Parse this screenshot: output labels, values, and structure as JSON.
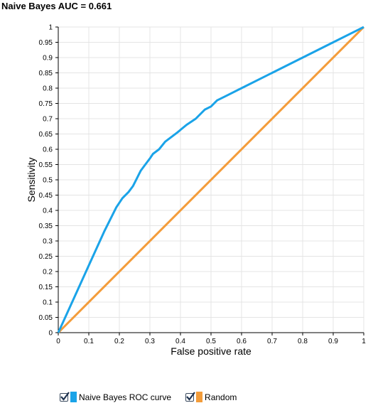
{
  "title": "Naive Bayes AUC = 0.661",
  "chart_data": {
    "type": "line",
    "title": "Naive Bayes AUC = 0.661",
    "xlabel": "False positive rate",
    "ylabel": "Sensitivity",
    "xlim": [
      0,
      1
    ],
    "ylim": [
      0,
      1
    ],
    "x_ticks": [
      "0",
      "0.1",
      "0.2",
      "0.3",
      "0.4",
      "0.5",
      "0.6",
      "0.7",
      "0.8",
      "0.9",
      "1"
    ],
    "y_ticks": [
      "0",
      "0.05",
      "0.1",
      "0.15",
      "0.2",
      "0.25",
      "0.3",
      "0.35",
      "0.4",
      "0.45",
      "0.5",
      "0.55",
      "0.6",
      "0.65",
      "0.7",
      "0.75",
      "0.8",
      "0.85",
      "0.9",
      "0.95",
      "1"
    ],
    "grid": true,
    "legend_position": "bottom-left",
    "series": [
      {
        "name": "Naive Bayes ROC curve",
        "color": "#1aa3e8",
        "x": [
          0,
          0.05,
          0.1,
          0.15,
          0.19,
          0.21,
          0.23,
          0.245,
          0.26,
          0.27,
          0.285,
          0.3,
          0.31,
          0.33,
          0.35,
          0.37,
          0.39,
          0.42,
          0.45,
          0.48,
          0.5,
          0.52,
          0.55,
          0.6,
          0.7,
          0.8,
          0.9,
          1.0
        ],
        "y": [
          0,
          0.11,
          0.22,
          0.33,
          0.41,
          0.44,
          0.46,
          0.48,
          0.51,
          0.53,
          0.55,
          0.57,
          0.585,
          0.6,
          0.625,
          0.64,
          0.655,
          0.68,
          0.7,
          0.73,
          0.74,
          0.76,
          0.775,
          0.8,
          0.85,
          0.9,
          0.95,
          1.0
        ]
      },
      {
        "name": "Random",
        "color": "#f39c3a",
        "x": [
          0,
          1
        ],
        "y": [
          0,
          1
        ]
      }
    ]
  },
  "legend": [
    {
      "label": "Naive Bayes ROC curve",
      "color": "#1aa3e8",
      "checked": true
    },
    {
      "label": "Random",
      "color": "#f39c3a",
      "checked": true
    }
  ]
}
